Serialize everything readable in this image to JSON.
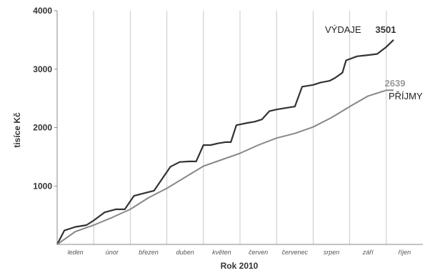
{
  "chart_data": {
    "type": "line",
    "xlabel": "Rok 2010",
    "ylabel": "tisíce Kč",
    "ylim": [
      0,
      4000
    ],
    "yticks": [
      "4000",
      "3000",
      "2000",
      "1000"
    ],
    "grid": "vertical lines between months",
    "months": [
      "leden",
      "únor",
      "březen",
      "duben",
      "květen",
      "červen",
      "červenec",
      "srpen",
      "září",
      "říjen"
    ],
    "series": [
      {
        "name": "VÝDAJE",
        "end_value": "3501",
        "color": "#333333",
        "x": [
          0,
          0.2,
          0.5,
          0.8,
          1.0,
          1.3,
          1.6,
          1.85,
          2.1,
          2.4,
          2.65,
          2.9,
          3.1,
          3.35,
          3.6,
          3.8,
          4.0,
          4.2,
          4.4,
          4.6,
          4.75,
          4.9,
          5.2,
          5.4,
          5.6,
          5.8,
          6.0,
          6.3,
          6.5,
          6.7,
          7.0,
          7.2,
          7.45,
          7.6,
          7.8,
          7.9,
          8.2,
          8.5,
          8.75,
          9.0,
          9.2
        ],
        "values": [
          0,
          240,
          300,
          330,
          410,
          550,
          600,
          600,
          830,
          880,
          920,
          1150,
          1330,
          1410,
          1420,
          1420,
          1700,
          1700,
          1730,
          1750,
          1750,
          2040,
          2080,
          2100,
          2140,
          2280,
          2310,
          2340,
          2360,
          2700,
          2730,
          2770,
          2800,
          2850,
          2940,
          3150,
          3220,
          3240,
          3260,
          3380,
          3501
        ]
      },
      {
        "name": "PŘÍJMY",
        "end_value": "2639",
        "color": "#888888",
        "x": [
          0,
          0.5,
          1.0,
          1.5,
          2.0,
          2.5,
          3.0,
          3.5,
          4.0,
          4.5,
          5.0,
          5.5,
          6.0,
          6.5,
          7.0,
          7.5,
          8.0,
          8.5,
          9.0,
          9.2
        ],
        "values": [
          0,
          220,
          330,
          460,
          600,
          800,
          960,
          1150,
          1340,
          1450,
          1560,
          1700,
          1820,
          1900,
          2010,
          2170,
          2360,
          2540,
          2639,
          2639
        ]
      }
    ]
  }
}
